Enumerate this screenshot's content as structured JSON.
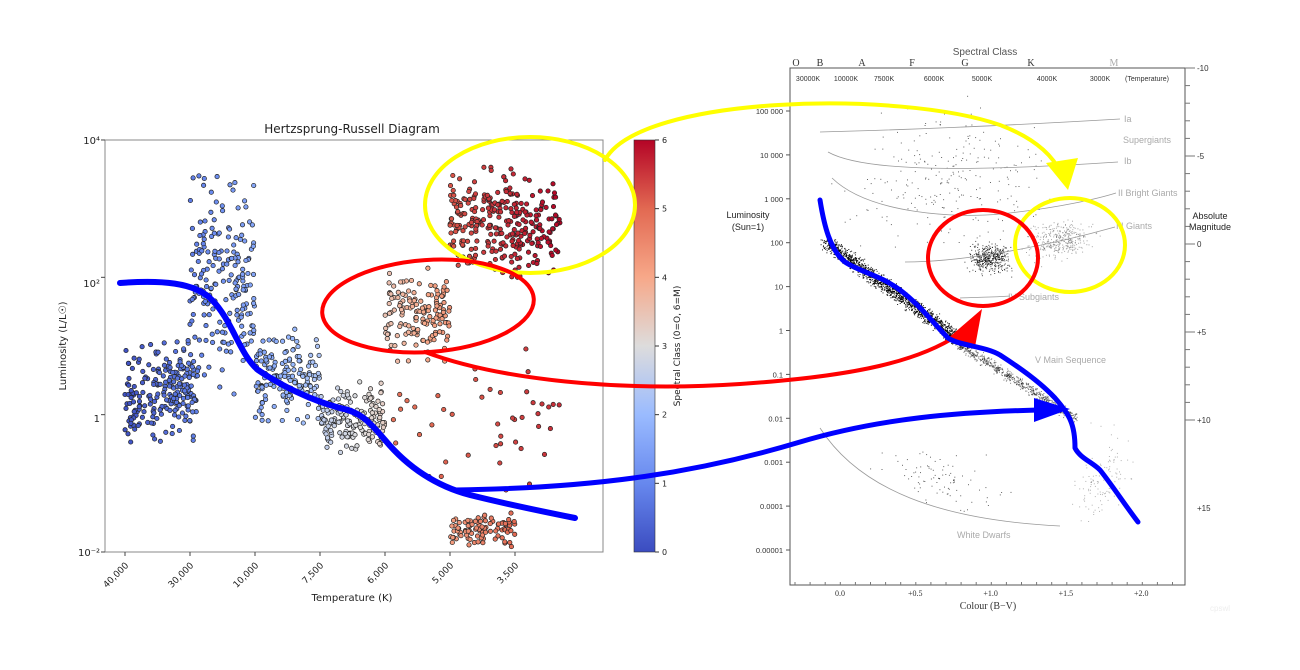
{
  "chart_data": [
    {
      "type": "scatter",
      "title": "Hertzsprung-Russell Diagram",
      "xlabel": "Temperature (K)",
      "ylabel": "Luminosity (L/L☉)",
      "x_tick_labels": [
        "40,000",
        "30,000",
        "10,000",
        "7,500",
        "6,000",
        "5,000",
        "3,500"
      ],
      "y_scale": "log",
      "ylim": [
        0.01,
        10000
      ],
      "y_tick_labels": [
        "10⁻²",
        "1",
        "10²",
        "10⁴"
      ],
      "colorbar": {
        "label": "Spectral Class (0=O, 6=M)",
        "colormap": "coolwarm",
        "range": [
          0,
          6
        ],
        "tick_labels": [
          "0",
          "1",
          "2",
          "3",
          "4",
          "5",
          "6"
        ],
        "colors": [
          "#3b4cc0",
          "#6788ee",
          "#9abbff",
          "#dddcdc",
          "#f7a889",
          "#e26952",
          "#b40426"
        ]
      },
      "grid": false,
      "clusters": [
        {
          "temperature_K": [
            40000,
            28000
          ],
          "luminosity": [
            0.4,
            12
          ],
          "spectral_class": 0.5,
          "count": 220
        },
        {
          "temperature_K": [
            30000,
            10000
          ],
          "luminosity": [
            2,
            3000
          ],
          "spectral_class": 1.2,
          "count": 200
        },
        {
          "temperature_K": [
            10000,
            7500
          ],
          "luminosity": [
            0.6,
            20
          ],
          "spectral_class": 1.9,
          "count": 160
        },
        {
          "temperature_K": [
            7500,
            6000
          ],
          "luminosity": [
            0.25,
            3
          ],
          "spectral_class": 2.9,
          "count": 160
        },
        {
          "temperature_K": [
            6000,
            5000
          ],
          "luminosity": [
            6,
            150
          ],
          "spectral_class": 3.9,
          "count": 150
        },
        {
          "temperature_K": [
            5000,
            2800
          ],
          "luminosity": [
            80,
            4000
          ],
          "spectral_class": 5.6,
          "count": 300
        },
        {
          "temperature_K": [
            5000,
            3500
          ],
          "luminosity": [
            0.012,
            0.04
          ],
          "spectral_class": 4.6,
          "count": 90
        },
        {
          "temperature_K": [
            6000,
            2800
          ],
          "luminosity": [
            0.04,
            10
          ],
          "spectral_class": 5.2,
          "count": 45
        }
      ]
    },
    {
      "type": "scatter",
      "top_title": "Spectral Class",
      "spectral_classes": [
        "O",
        "B",
        "A",
        "F",
        "G",
        "K",
        "M"
      ],
      "temperature_labels": [
        "30000K",
        "10000K",
        "7500K",
        "6000K",
        "5000K",
        "4000K",
        "3000K",
        "(Temperature)"
      ],
      "ylabel_left": "Luminosity\n(Sun=1)",
      "ylabel_left_lines": [
        "Luminosity",
        "(Sun=1)"
      ],
      "y_scale": "log",
      "luminosity_tick_labels": [
        "100 000",
        "10 000",
        "1 000",
        "100",
        "10",
        "1",
        "0.1",
        "0.01",
        "0.001",
        "0.0001",
        "0.00001"
      ],
      "ylabel_right_lines": [
        "Absolute",
        "Magnitude"
      ],
      "magnitude_tick_labels": [
        "-10",
        "-5",
        "0",
        "+5",
        "+10",
        "+15"
      ],
      "xlabel": "Colour (B−V)",
      "x_tick_labels": [
        "0.0",
        "+0.5",
        "+1.0",
        "+1.5",
        "+2.0"
      ],
      "region_labels": [
        "Ia",
        "Supergiants",
        "Ib",
        "II Bright Giants",
        "III  Giants",
        "IV Subgiants",
        "V  Main Sequence",
        "White Dwarfs"
      ],
      "watermark": "cpswl"
    }
  ],
  "annotations": {
    "colors": {
      "main_sequence": "#0000ff",
      "subgiants": "#ff0000",
      "giants": "#ffff00"
    }
  }
}
